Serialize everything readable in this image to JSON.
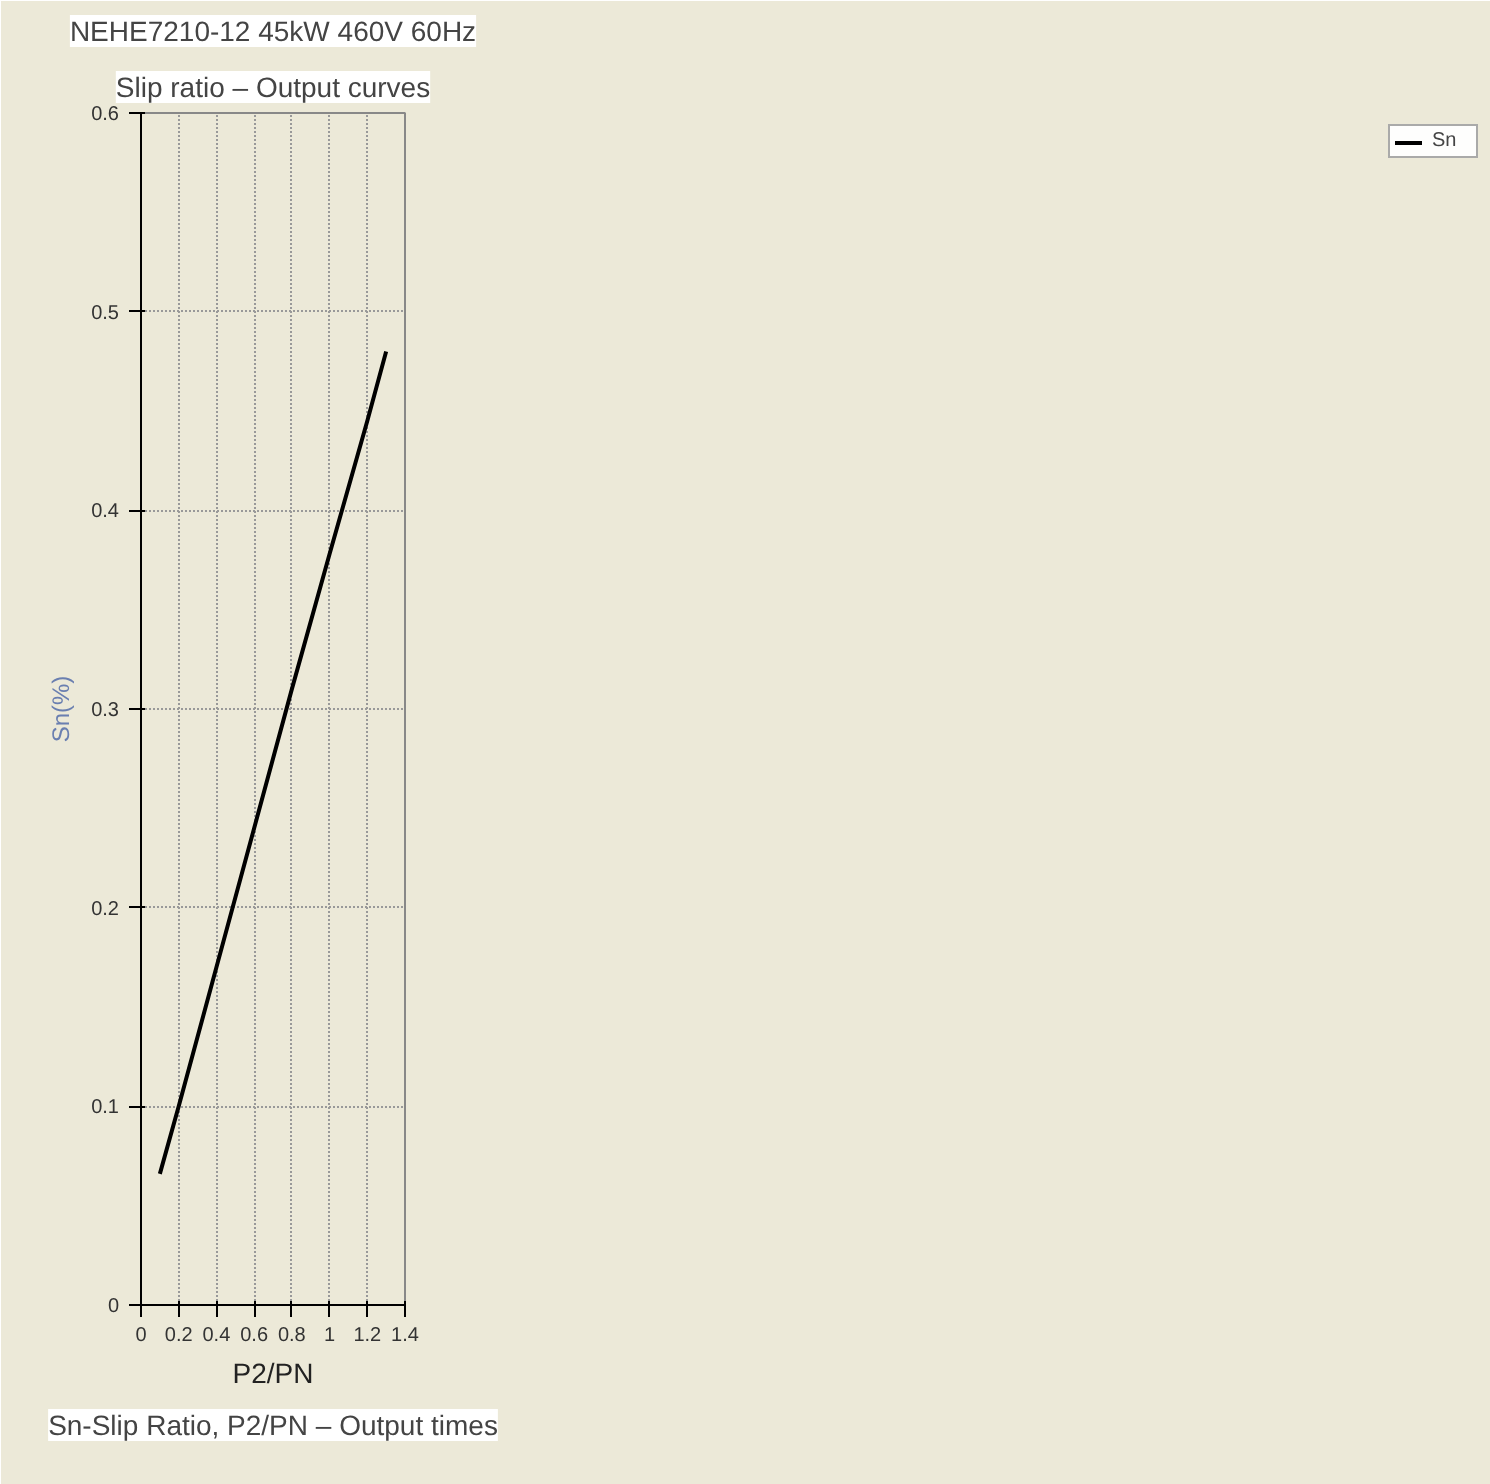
{
  "chart_data": {
    "type": "line",
    "title": "NEHE7210-12 45kW 460V 60Hz",
    "subtitle": "Slip ratio – Output curves",
    "xlabel": "P2/PN",
    "ylabel": "Sn(%)",
    "annotations": [
      "Sn-Slip Ratio, P2/PN – Output times"
    ],
    "x": [
      0.1,
      0.2,
      0.4,
      0.6,
      0.8,
      1.0,
      1.2,
      1.3
    ],
    "series": [
      {
        "name": "Sn",
        "color": "#000000",
        "values": [
          0.066,
          0.1,
          0.17,
          0.24,
          0.31,
          0.378,
          0.445,
          0.48
        ]
      }
    ],
    "xlim": [
      0,
      1.4
    ],
    "xticks": [
      0,
      0.2,
      0.4,
      0.6,
      0.8,
      1,
      1.2,
      1.4
    ],
    "ylim": [
      0,
      0.6
    ],
    "yticks": [
      0,
      0.1,
      0.2,
      0.3,
      0.4,
      0.5,
      0.6
    ],
    "grid": true,
    "legend": "top right",
    "marker": "none",
    "line_style": "solid"
  }
}
